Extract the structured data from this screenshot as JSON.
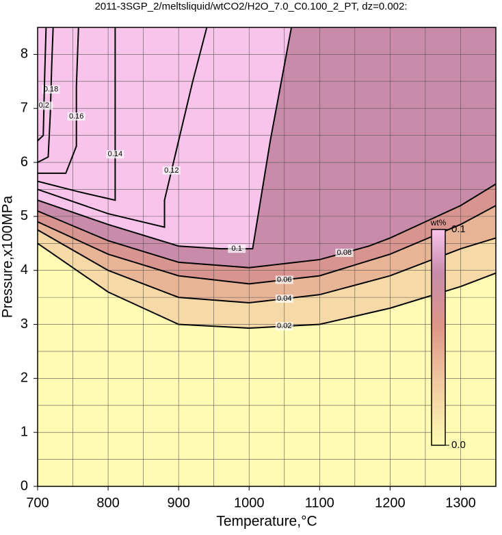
{
  "chart_data": {
    "type": "contour",
    "title": "2011-3SGP_2/meltsliquid/wtCO2/H2O_7.0_C0.100_2_PT, dz=0.002:",
    "x_label": "Temperature,°C",
    "y_label": "Pressure,x100MPa",
    "xlim": [
      700,
      1350
    ],
    "ylim": [
      0,
      8.5
    ],
    "xticks": [
      700,
      800,
      900,
      1000,
      1100,
      1200,
      1300
    ],
    "yticks": [
      0,
      1,
      2,
      3,
      4,
      5,
      6,
      7,
      8
    ],
    "xgrid": [
      750,
      800,
      850,
      900,
      950,
      1000,
      1050,
      1100,
      1150,
      1200,
      1250,
      1300
    ],
    "ygrid": [
      0.5,
      1,
      1.5,
      2,
      2.5,
      3,
      3.5,
      4,
      4.5,
      5,
      5.5,
      6,
      6.5,
      7,
      7.5,
      8
    ],
    "colorbar": {
      "label": "wt%",
      "ticks": [
        {
          "value": 0,
          "label": "0.0"
        },
        0.1
      ]
    },
    "contours": [
      {
        "level": 0.02,
        "x": [
          700,
          800,
          900,
          1000,
          1100,
          1200,
          1300,
          1350
        ],
        "y": [
          4.5,
          3.6,
          3.0,
          2.93,
          3.0,
          3.3,
          3.7,
          3.95
        ]
      },
      {
        "level": 0.04,
        "x": [
          700,
          800,
          900,
          1000,
          1100,
          1200,
          1300,
          1350
        ],
        "y": [
          4.75,
          4.0,
          3.5,
          3.4,
          3.55,
          3.9,
          4.4,
          4.6
        ]
      },
      {
        "level": 0.06,
        "x": [
          700,
          800,
          900,
          1000,
          1100,
          1200,
          1300,
          1350
        ],
        "y": [
          4.9,
          4.3,
          3.9,
          3.75,
          3.9,
          4.3,
          4.85,
          5.2
        ]
      },
      {
        "level": 0.08,
        "x": [
          700,
          800,
          900,
          1000,
          1100,
          1170,
          1200,
          1300,
          1350
        ],
        "y": [
          5.1,
          4.55,
          4.15,
          4.05,
          4.2,
          4.45,
          4.6,
          5.2,
          5.6
        ]
      },
      {
        "level": 0.1,
        "x": [
          700,
          800,
          900,
          960,
          1005,
          1030,
          1060
        ],
        "y": [
          5.3,
          4.85,
          4.45,
          4.4,
          4.4,
          6.4,
          8.5
        ]
      },
      {
        "level": 0.12,
        "x": [
          700,
          800,
          880,
          880,
          900,
          920,
          940
        ],
        "y": [
          5.5,
          5.05,
          4.8,
          5.3,
          6.4,
          7.5,
          8.5
        ]
      },
      {
        "level": 0.14,
        "x": [
          700,
          760,
          810,
          810,
          810
        ],
        "y": [
          5.65,
          5.45,
          5.3,
          7.0,
          8.5
        ]
      },
      {
        "level": 0.16,
        "x": [
          700,
          740,
          755,
          755,
          758
        ],
        "y": [
          5.8,
          5.8,
          6.3,
          7.4,
          8.5
        ]
      },
      {
        "level": 0.18,
        "x": [
          700,
          715,
          718,
          720,
          722
        ],
        "y": [
          6.0,
          6.1,
          6.9,
          7.8,
          8.5
        ]
      },
      {
        "level": 0.2,
        "x": [
          700,
          708,
          710,
          712
        ],
        "y": [
          6.4,
          6.5,
          7.6,
          8.5
        ]
      }
    ]
  }
}
